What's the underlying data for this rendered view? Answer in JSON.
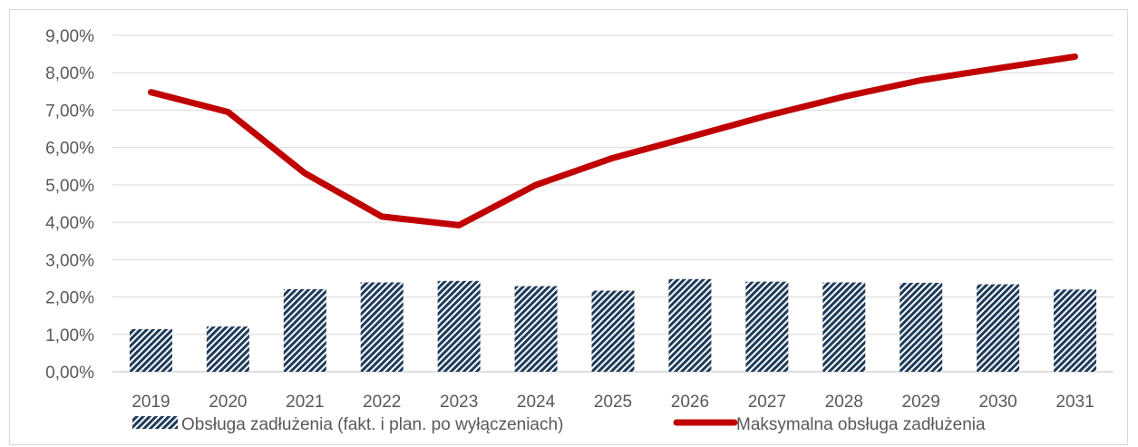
{
  "chart_data": {
    "type": "bar",
    "title": "",
    "xlabel": "",
    "ylabel": "",
    "categories": [
      "2019",
      "2020",
      "2021",
      "2022",
      "2023",
      "2024",
      "2025",
      "2026",
      "2027",
      "2028",
      "2029",
      "2030",
      "2031"
    ],
    "series": [
      {
        "name": "Obsługa zadłużenia (fakt. i plan. po wyłączeniach)",
        "type": "bar",
        "color": "#1f3b5a",
        "values": [
          1.14,
          1.21,
          2.21,
          2.39,
          2.43,
          2.29,
          2.17,
          2.48,
          2.41,
          2.39,
          2.38,
          2.34,
          2.2
        ]
      },
      {
        "name": "Maksymalna obsługa zadłużenia",
        "type": "line",
        "color": "#c00000",
        "values": [
          7.48,
          6.95,
          5.31,
          4.15,
          3.92,
          5.0,
          5.72,
          6.28,
          6.85,
          7.36,
          7.8,
          8.12,
          8.43
        ]
      }
    ],
    "ylim": [
      0,
      9
    ],
    "yticks": [
      "0,00%",
      "1,00%",
      "2,00%",
      "3,00%",
      "4,00%",
      "5,00%",
      "6,00%",
      "7,00%",
      "8,00%",
      "9,00%"
    ],
    "grid": true,
    "legend_position": "bottom"
  }
}
